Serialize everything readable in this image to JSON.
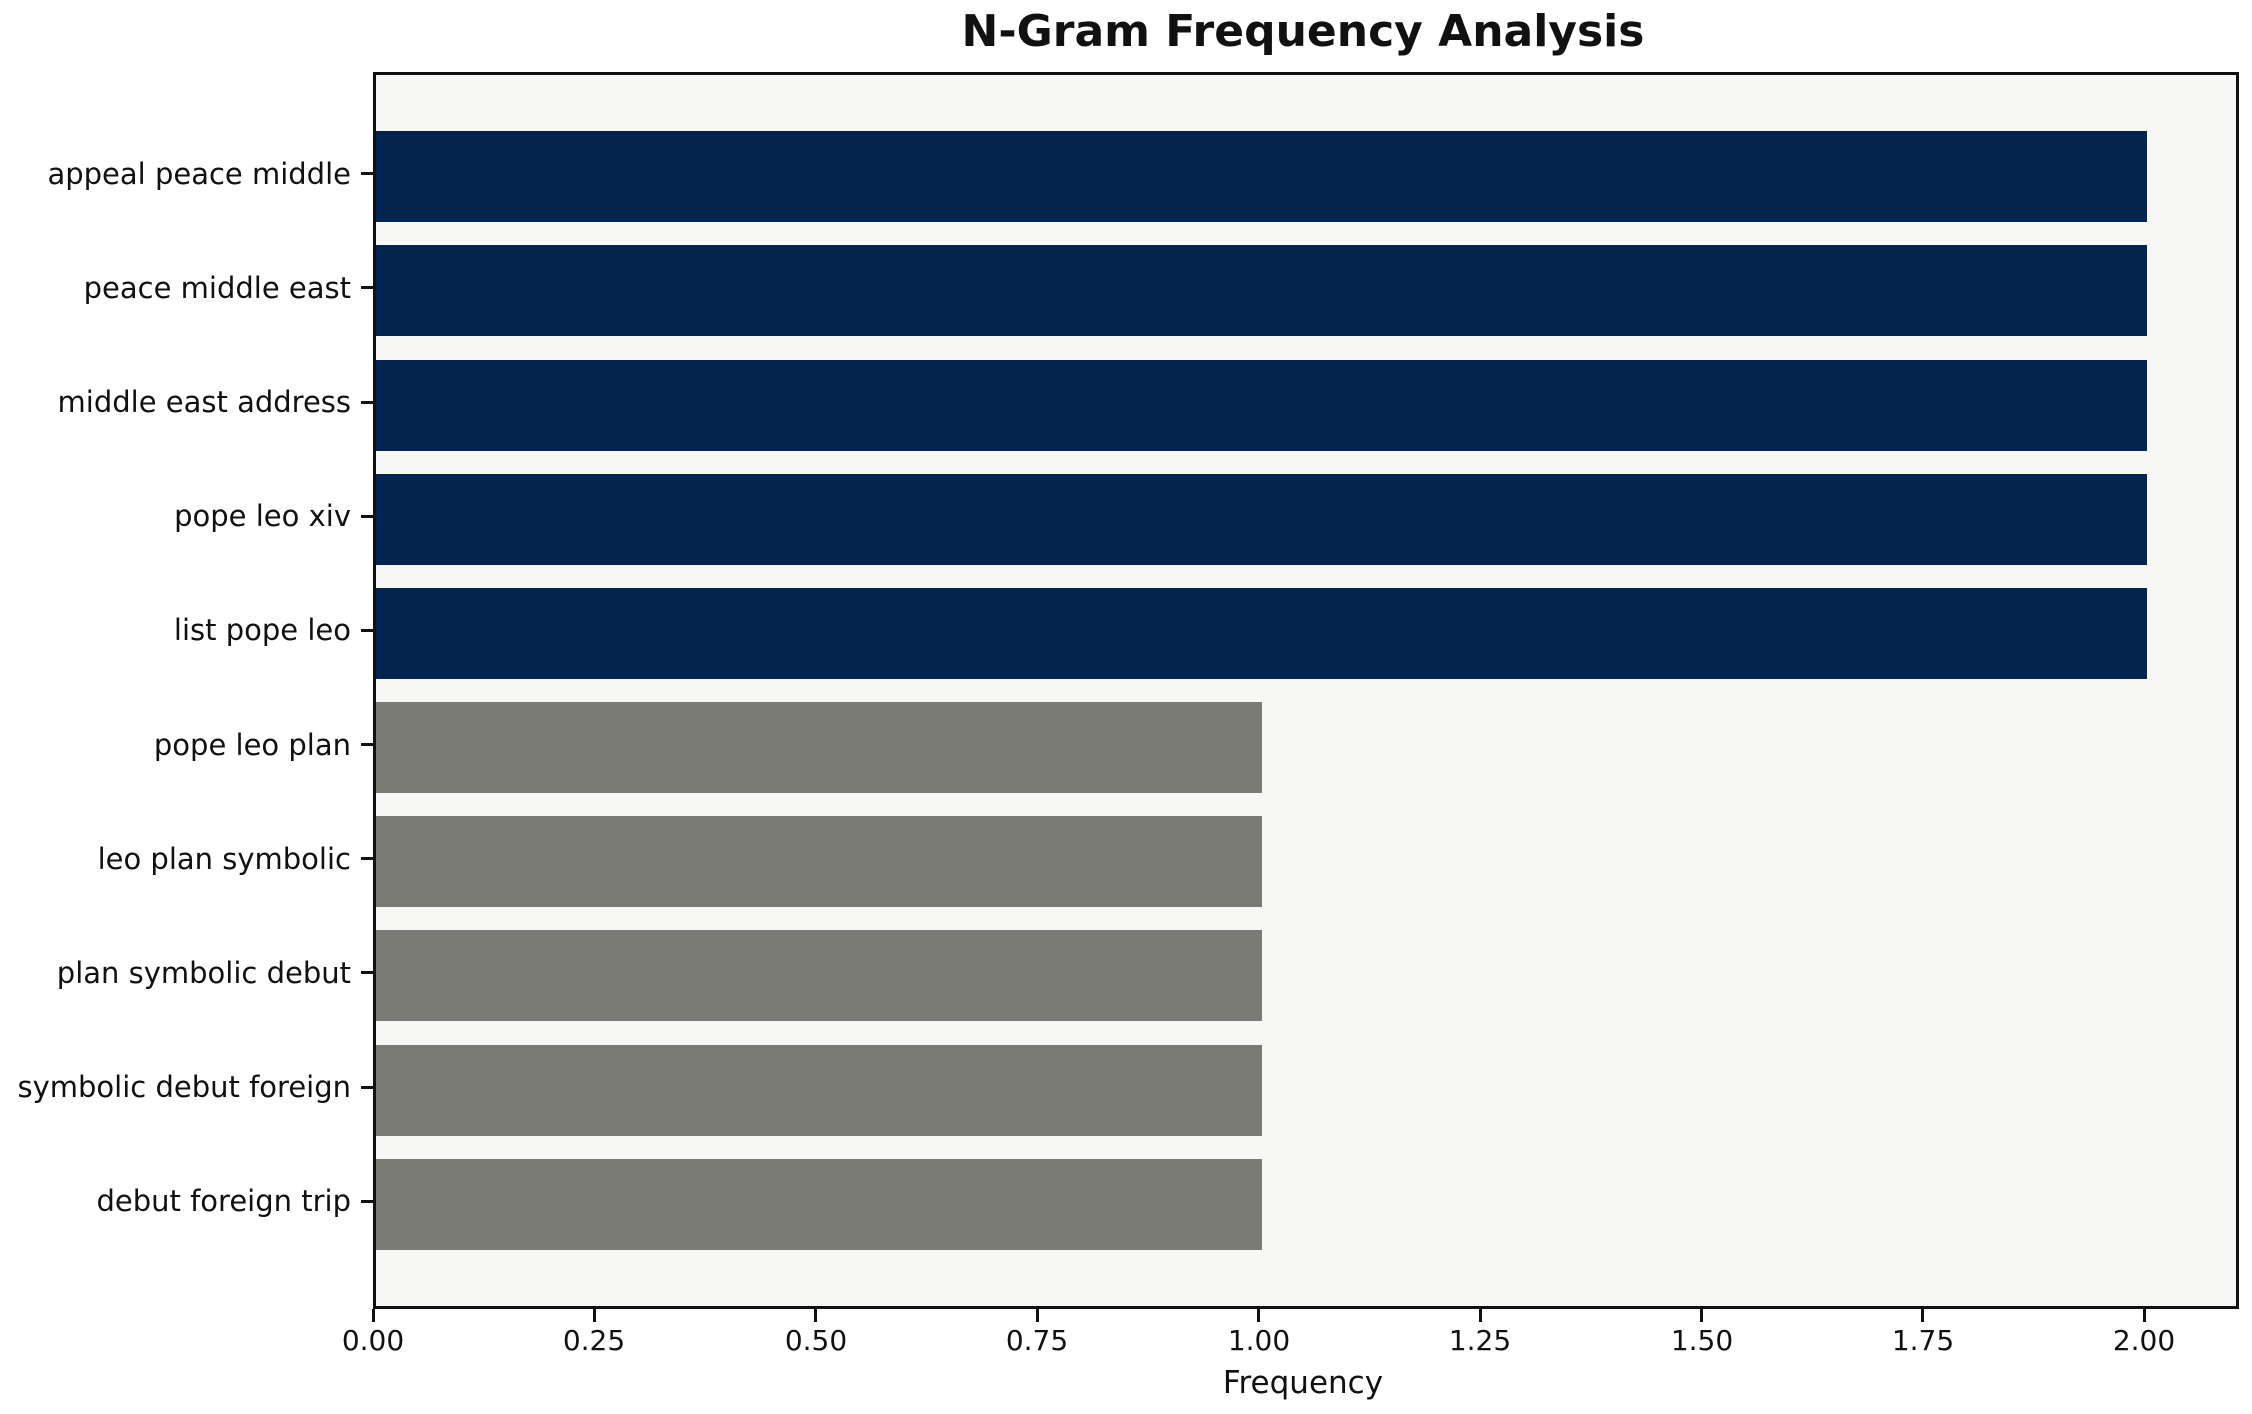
{
  "figure": {
    "background": "#ffffff",
    "plot_background": "#f7f7f5",
    "spine_color": "#111111",
    "text_color": "#111111"
  },
  "chart_data": {
    "type": "bar",
    "orientation": "horizontal",
    "title": "N-Gram Frequency Analysis",
    "xlabel": "Frequency",
    "ylabel": "",
    "categories": [
      "appeal peace middle",
      "peace middle east",
      "middle east address",
      "pope leo xiv",
      "list pope leo",
      "pope leo plan",
      "leo plan symbolic",
      "plan symbolic debut",
      "symbolic debut foreign",
      "debut foreign trip"
    ],
    "values": [
      2,
      2,
      2,
      2,
      2,
      1,
      1,
      1,
      1,
      1
    ],
    "colors": [
      "#02244e",
      "#02244e",
      "#02244e",
      "#02244e",
      "#02244e",
      "#7a7a75",
      "#7a7a75",
      "#7a7a75",
      "#7a7a75",
      "#7a7a75"
    ],
    "xlim": [
      0,
      2.1
    ],
    "xtick_values": [
      0,
      0.25,
      0.5,
      0.75,
      1.0,
      1.25,
      1.5,
      1.75,
      2.0
    ],
    "xtick_labels": [
      "0.00",
      "0.25",
      "0.50",
      "0.75",
      "1.00",
      "1.25",
      "1.50",
      "1.75",
      "2.00"
    ],
    "grid": false,
    "legend": null
  }
}
